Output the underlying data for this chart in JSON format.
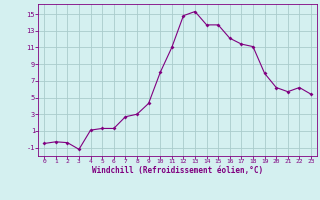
{
  "x": [
    0,
    1,
    2,
    3,
    4,
    5,
    6,
    7,
    8,
    9,
    10,
    11,
    12,
    13,
    14,
    15,
    16,
    17,
    18,
    19,
    20,
    21,
    22,
    23
  ],
  "y": [
    -0.5,
    -0.3,
    -0.4,
    -1.2,
    1.1,
    1.3,
    1.3,
    2.7,
    3.0,
    4.3,
    8.0,
    11.0,
    14.8,
    15.3,
    13.7,
    13.7,
    12.1,
    11.4,
    11.1,
    7.9,
    6.2,
    5.7,
    6.2,
    5.4
  ],
  "line_color": "#800080",
  "marker": "D",
  "marker_size": 2.0,
  "bg_color": "#d4f0f0",
  "grid_color": "#aacccc",
  "xlabel": "Windchill (Refroidissement éolien,°C)",
  "xlabel_color": "#800080",
  "tick_color": "#800080",
  "yticks": [
    -1,
    1,
    3,
    5,
    7,
    9,
    11,
    13,
    15
  ],
  "ytick_labels": [
    "-1",
    "1",
    "3",
    "5",
    "7",
    "9",
    "11",
    "13",
    "15"
  ],
  "ylim": [
    -2.0,
    16.2
  ],
  "xlim": [
    -0.5,
    23.5
  ],
  "xticks": [
    0,
    1,
    2,
    3,
    4,
    5,
    6,
    7,
    8,
    9,
    10,
    11,
    12,
    13,
    14,
    15,
    16,
    17,
    18,
    19,
    20,
    21,
    22,
    23
  ]
}
